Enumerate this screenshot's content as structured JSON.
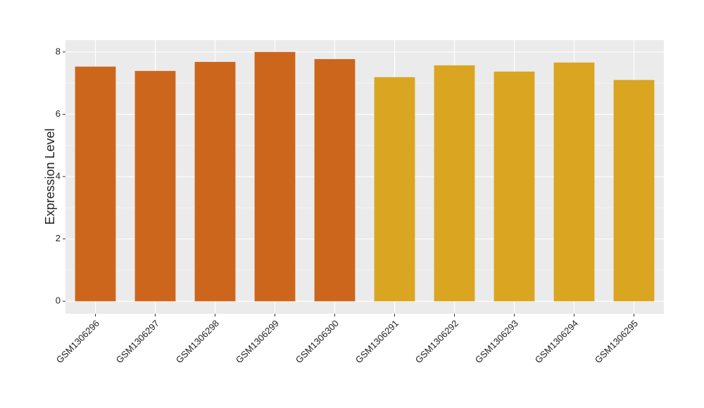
{
  "chart_data": {
    "type": "bar",
    "ylabel": "Expression Level",
    "categories": [
      "GSM1306296",
      "GSM1306297",
      "GSM1306298",
      "GSM1306299",
      "GSM1306300",
      "GSM1306291",
      "GSM1306292",
      "GSM1306293",
      "GSM1306294",
      "GSM1306295"
    ],
    "values": [
      7.53,
      7.39,
      7.68,
      8.0,
      7.77,
      7.19,
      7.57,
      7.37,
      7.66,
      7.1
    ],
    "colors": [
      "#cd661d",
      "#cd661d",
      "#cd661d",
      "#cd661d",
      "#cd661d",
      "#daa520",
      "#daa520",
      "#daa520",
      "#daa520",
      "#daa520"
    ],
    "ylim": [
      -0.4,
      8.38
    ],
    "yticks": [
      0,
      2,
      4,
      6,
      8
    ],
    "grid": true
  }
}
